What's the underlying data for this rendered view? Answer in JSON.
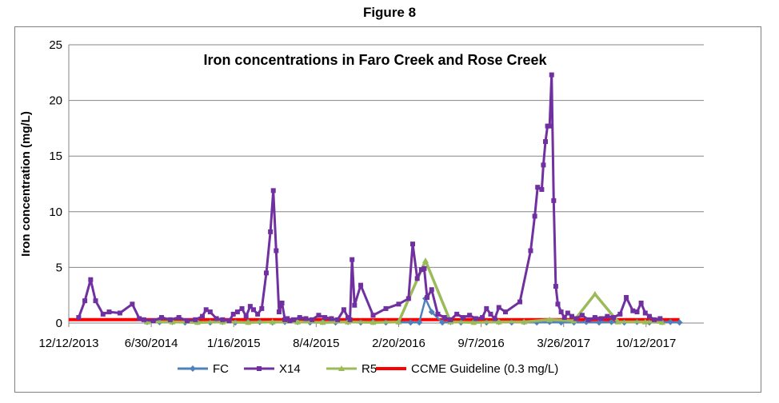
{
  "figure_label": "Figure 8",
  "chart_data": {
    "type": "line",
    "title": "Iron concentrations in Faro Creek and Rose Creek",
    "xlabel": "",
    "ylabel": "Iron concentration (mg/L)",
    "ylim": [
      0,
      25
    ],
    "yticks": [
      0,
      5,
      10,
      15,
      20,
      25
    ],
    "xlim": [
      "2013-12-12",
      "2018-03-01"
    ],
    "xticks": [
      "2013-12-12",
      "2014-06-30",
      "2015-01-16",
      "2015-08-04",
      "2016-02-20",
      "2016-09-07",
      "2017-03-26",
      "2017-10-12"
    ],
    "xtick_labels": [
      "12/12/2013",
      "6/30/2014",
      "1/16/2015",
      "8/4/2015",
      "2/20/2016",
      "9/7/2016",
      "3/26/2017",
      "10/12/2017"
    ],
    "grid": "horizontal",
    "legend_position": "bottom",
    "series": [
      {
        "name": "FC",
        "color": "#4F81BD",
        "marker": "diamond",
        "x": [
          "2014-06-20",
          "2014-07-20",
          "2014-08-20",
          "2014-09-20",
          "2014-10-20",
          "2014-11-20",
          "2014-12-20",
          "2015-01-20",
          "2015-02-20",
          "2015-03-20",
          "2015-04-20",
          "2015-05-20",
          "2015-06-20",
          "2015-07-20",
          "2015-08-20",
          "2015-09-20",
          "2015-10-20",
          "2015-11-20",
          "2015-12-20",
          "2016-01-20",
          "2016-02-20",
          "2016-03-20",
          "2016-04-10",
          "2016-04-25",
          "2016-05-10",
          "2016-06-05",
          "2016-06-25",
          "2016-07-20",
          "2016-08-20",
          "2016-09-20",
          "2016-10-20",
          "2016-11-20",
          "2016-12-20",
          "2017-01-20",
          "2017-02-20",
          "2017-03-20",
          "2017-04-20",
          "2017-05-20",
          "2017-06-20",
          "2017-07-20",
          "2017-08-20",
          "2017-09-20",
          "2017-10-20",
          "2017-11-20",
          "2017-12-10",
          "2018-01-01"
        ],
        "y": [
          0.1,
          0.08,
          0.1,
          0.05,
          0.1,
          0.05,
          0.1,
          0.05,
          0.1,
          0.1,
          0.05,
          0.1,
          0.1,
          0.05,
          0.1,
          0.05,
          0.1,
          0.05,
          0.1,
          0.05,
          0.1,
          0.05,
          0.05,
          2.2,
          1.0,
          0.05,
          0.1,
          0.05,
          0.1,
          0.05,
          0.1,
          0.05,
          0.1,
          0.05,
          0.1,
          0.05,
          0.05,
          0.1,
          0.05,
          0.1,
          0.05,
          0.1,
          0.05,
          0.1,
          0.1,
          0.05
        ]
      },
      {
        "name": "X14",
        "color": "#7030A0",
        "marker": "square",
        "x": [
          "2014-01-05",
          "2014-01-20",
          "2014-02-03",
          "2014-02-15",
          "2014-03-05",
          "2014-03-20",
          "2014-04-15",
          "2014-05-15",
          "2014-06-01",
          "2014-06-12",
          "2014-07-05",
          "2014-07-25",
          "2014-08-15",
          "2014-09-05",
          "2014-09-25",
          "2014-10-15",
          "2014-11-01",
          "2014-11-10",
          "2014-11-20",
          "2014-12-05",
          "2014-12-20",
          "2015-01-05",
          "2015-01-15",
          "2015-01-25",
          "2015-02-05",
          "2015-02-15",
          "2015-02-25",
          "2015-03-05",
          "2015-03-15",
          "2015-03-25",
          "2015-04-05",
          "2015-04-15",
          "2015-04-22",
          "2015-04-29",
          "2015-05-06",
          "2015-05-13",
          "2015-05-20",
          "2015-05-26",
          "2015-06-01",
          "2015-06-10",
          "2015-06-25",
          "2015-07-10",
          "2015-07-25",
          "2015-08-10",
          "2015-08-25",
          "2015-09-10",
          "2015-09-25",
          "2015-10-10",
          "2015-10-20",
          "2015-10-25",
          "2015-10-30",
          "2015-11-05",
          "2015-11-20",
          "2015-12-20",
          "2016-01-20",
          "2016-02-20",
          "2016-03-15",
          "2016-03-25",
          "2016-04-05",
          "2016-04-15",
          "2016-04-22",
          "2016-04-29",
          "2016-05-10",
          "2016-05-25",
          "2016-06-10",
          "2016-06-25",
          "2016-07-10",
          "2016-07-25",
          "2016-08-10",
          "2016-08-25",
          "2016-09-10",
          "2016-09-20",
          "2016-09-30",
          "2016-10-10",
          "2016-10-20",
          "2016-11-05",
          "2016-12-10",
          "2017-01-05",
          "2017-01-15",
          "2017-01-22",
          "2017-02-01",
          "2017-02-05",
          "2017-02-10",
          "2017-02-15",
          "2017-02-20",
          "2017-02-25",
          "2017-03-02",
          "2017-03-07",
          "2017-03-12",
          "2017-03-20",
          "2017-03-28",
          "2017-04-05",
          "2017-04-15",
          "2017-04-25",
          "2017-05-10",
          "2017-05-25",
          "2017-06-10",
          "2017-06-25",
          "2017-07-10",
          "2017-07-25",
          "2017-08-10",
          "2017-08-25",
          "2017-09-10",
          "2017-09-20",
          "2017-09-30",
          "2017-10-10",
          "2017-10-20",
          "2017-11-01",
          "2017-11-15"
        ],
        "y": [
          0.5,
          2.0,
          3.9,
          2.0,
          0.8,
          1.0,
          0.9,
          1.7,
          0.4,
          0.3,
          0.2,
          0.5,
          0.3,
          0.5,
          0.2,
          0.3,
          0.6,
          1.2,
          1.0,
          0.4,
          0.3,
          0.2,
          0.8,
          1.0,
          1.3,
          0.6,
          1.5,
          1.2,
          0.8,
          1.3,
          4.5,
          8.2,
          11.9,
          6.5,
          1.0,
          1.8,
          0.3,
          0.4,
          0.2,
          0.3,
          0.5,
          0.4,
          0.3,
          0.7,
          0.5,
          0.4,
          0.3,
          1.2,
          0.5,
          0.3,
          5.7,
          1.6,
          3.4,
          0.7,
          1.3,
          1.7,
          2.2,
          7.1,
          4.0,
          4.8,
          4.9,
          2.3,
          3.0,
          0.8,
          0.5,
          0.3,
          0.8,
          0.5,
          0.7,
          0.4,
          0.5,
          1.3,
          0.8,
          0.4,
          1.4,
          1.0,
          1.9,
          6.5,
          9.6,
          12.2,
          12.0,
          14.2,
          16.3,
          17.7,
          17.7,
          22.3,
          11.0,
          3.3,
          1.7,
          1.0,
          0.5,
          0.9,
          0.6,
          0.4,
          0.7,
          0.3,
          0.5,
          0.4,
          0.6,
          0.5,
          0.8,
          2.3,
          1.1,
          1.0,
          1.8,
          0.9,
          0.6,
          0.3,
          0.4
        ]
      },
      {
        "name": "R5",
        "color": "#9BBB59",
        "marker": "triangle",
        "x": [
          "2014-06-20",
          "2014-08-20",
          "2014-10-20",
          "2014-12-20",
          "2015-02-20",
          "2015-04-20",
          "2015-06-20",
          "2015-08-20",
          "2015-10-20",
          "2015-12-20",
          "2016-02-20",
          "2016-04-25",
          "2016-06-25",
          "2016-08-20",
          "2016-10-20",
          "2016-12-20",
          "2017-02-20",
          "2017-04-20",
          "2017-06-10",
          "2017-08-05",
          "2017-10-10",
          "2017-11-20"
        ],
        "y": [
          0.1,
          0.1,
          0.05,
          0.1,
          0.05,
          0.1,
          0.1,
          0.05,
          0.1,
          0.05,
          0.1,
          5.6,
          0.1,
          0.05,
          0.1,
          0.1,
          0.3,
          0.2,
          2.6,
          0.1,
          0.1,
          0.05
        ]
      },
      {
        "name": "CCME Guideline (0.3 mg/L)",
        "color": "#FF0000",
        "marker": "none",
        "x": [
          "2013-12-12",
          "2018-01-01"
        ],
        "y": [
          0.3,
          0.3
        ]
      }
    ]
  }
}
